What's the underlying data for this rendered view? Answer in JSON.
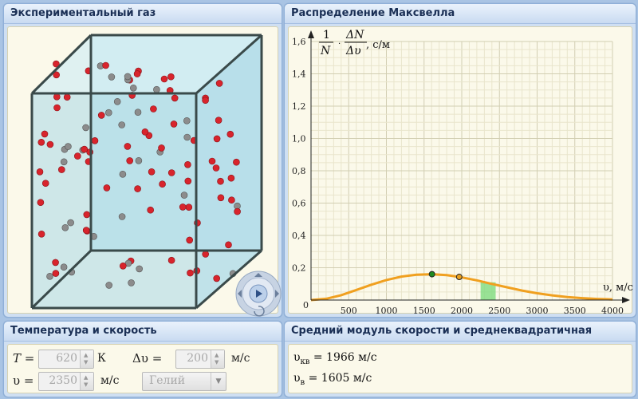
{
  "panels": {
    "gas": {
      "title": "Экспериментальный газ"
    },
    "maxwell": {
      "title": "Распределение Максвелла"
    },
    "temp": {
      "title": "Температура и скорость"
    },
    "mean": {
      "title": "Средний модуль скорости и среднеквадратичная скорость"
    }
  },
  "controls": {
    "T_label": "T =",
    "T_value": "620",
    "T_unit": "К",
    "dv_label": "Δυ =",
    "dv_value": "200",
    "dv_unit": "м/с",
    "v_label": "υ =",
    "v_value": "2350",
    "v_unit": "м/с",
    "gas_select": "Гелий"
  },
  "results": {
    "vkv_sym": "υ",
    "vkv_sub": "кв",
    "vkv_value": "= 1966 м/с",
    "vv_sym": "υ",
    "vv_sub": "в",
    "vv_value": "= 1605 м/с"
  },
  "colors": {
    "curve": "#f0a020",
    "band": "#7fdc7f",
    "red_ball": "#d8242c",
    "gray_ball": "#8c8c8c"
  },
  "chart_data": {
    "type": "line",
    "x_axis_label": "υ, м/с",
    "y_axis_label_num1": "1",
    "y_axis_label_den1": "N",
    "y_axis_label_num2": "ΔN",
    "y_axis_label_den2": "Δυ",
    "y_axis_label_unit": ", с/м",
    "x_ticks": [
      "500",
      "1000",
      "1500",
      "2000",
      "2500",
      "3000",
      "3500",
      "4000"
    ],
    "y_ticks": [
      "0,2",
      "0,4",
      "0,6",
      "0,8",
      "1,0",
      "1,2",
      "1,4",
      "1,6"
    ],
    "origin_label": "0",
    "xlim": [
      0,
      4000
    ],
    "ylim": [
      0,
      1.6
    ],
    "series": [
      {
        "x": [
          0,
          200,
          400,
          600,
          800,
          1000,
          1200,
          1400,
          1605,
          1800,
          1966,
          2200,
          2400,
          2600,
          2800,
          3000,
          3200,
          3400,
          3600,
          3800,
          4000
        ],
        "values": [
          0,
          0.008,
          0.03,
          0.062,
          0.095,
          0.124,
          0.145,
          0.157,
          0.16,
          0.154,
          0.143,
          0.122,
          0.1,
          0.079,
          0.059,
          0.042,
          0.029,
          0.019,
          0.012,
          0.007,
          0.004
        ]
      }
    ],
    "markers": [
      {
        "x": 1605,
        "y": 0.16,
        "color": "#1f8a1f"
      },
      {
        "x": 1966,
        "y": 0.143,
        "color": "#e8a020"
      }
    ],
    "band": {
      "x_from": 2250,
      "x_to": 2450,
      "y": 0.11
    }
  }
}
